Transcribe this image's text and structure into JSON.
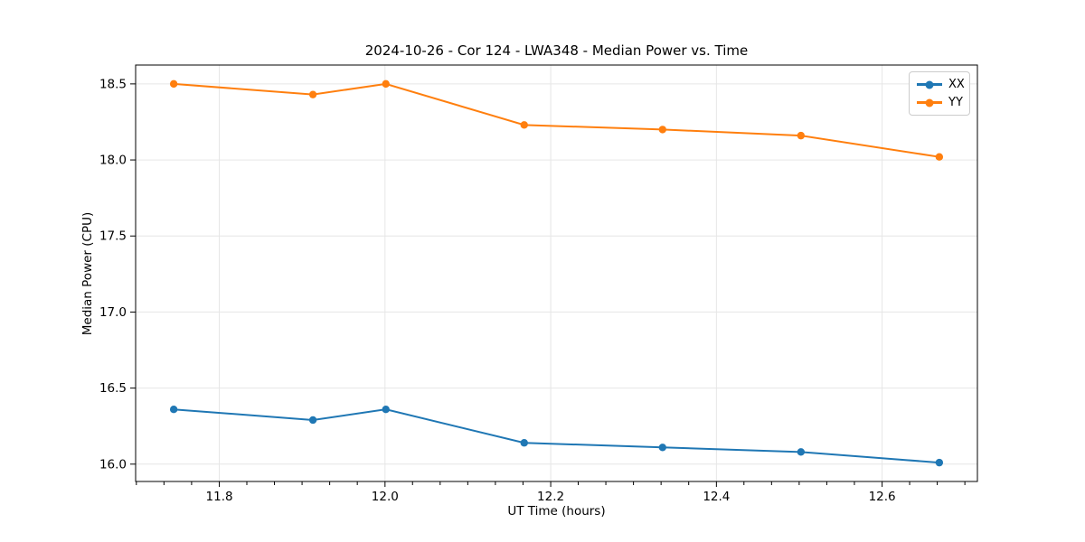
{
  "page": {
    "background": "#ffffff",
    "plot_border_color": "#000000",
    "grid_color": "#e6e6e6"
  },
  "chart_data": {
    "type": "line",
    "title": "2024-10-26 - Cor 124 - LWA348 - Median Power vs. Time",
    "xlabel": "UT Time (hours)",
    "ylabel": "Median Power (CPU)",
    "xlim": [
      11.699,
      12.715
    ],
    "ylim": [
      15.886,
      18.624
    ],
    "x_ticks": [
      11.8,
      12.0,
      12.2,
      12.4,
      12.6
    ],
    "y_ticks": [
      16.0,
      16.5,
      17.0,
      17.5,
      18.0,
      18.5
    ],
    "x_minor_step": 0.033333,
    "grid": true,
    "legend_position": "upper right",
    "x": [
      11.745,
      11.913,
      12.001,
      12.168,
      12.335,
      12.502,
      12.669
    ],
    "series": [
      {
        "name": "XX",
        "color": "#1f77b4",
        "values": [
          16.36,
          16.29,
          16.36,
          16.14,
          16.11,
          16.08,
          16.01
        ]
      },
      {
        "name": "YY",
        "color": "#ff7f0e",
        "values": [
          18.5,
          18.43,
          18.5,
          18.23,
          18.2,
          18.16,
          18.02
        ]
      }
    ]
  }
}
